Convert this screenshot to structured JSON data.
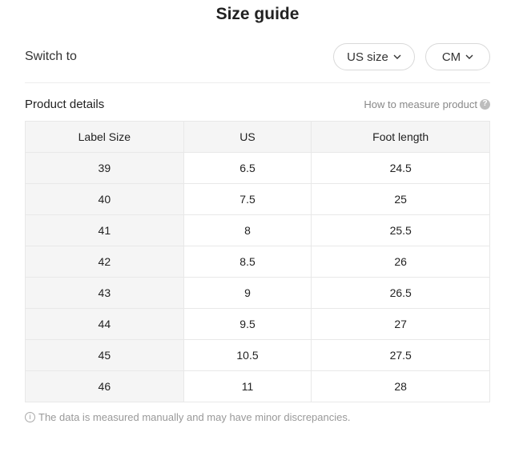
{
  "title": "Size guide",
  "switch": {
    "label": "Switch to",
    "size_selector": "US size",
    "unit_selector": "CM"
  },
  "details": {
    "label": "Product details",
    "measure_link": "How to measure product",
    "help_glyph": "?"
  },
  "table": {
    "headers": [
      "Label Size",
      "US",
      "Foot length"
    ],
    "rows": [
      [
        "39",
        "6.5",
        "24.5"
      ],
      [
        "40",
        "7.5",
        "25"
      ],
      [
        "41",
        "8",
        "25.5"
      ],
      [
        "42",
        "8.5",
        "26"
      ],
      [
        "43",
        "9",
        "26.5"
      ],
      [
        "44",
        "9.5",
        "27"
      ],
      [
        "45",
        "10.5",
        "27.5"
      ],
      [
        "46",
        "11",
        "28"
      ]
    ]
  },
  "note": {
    "glyph": "i",
    "text": "The data is measured manually and may have minor discrepancies."
  }
}
